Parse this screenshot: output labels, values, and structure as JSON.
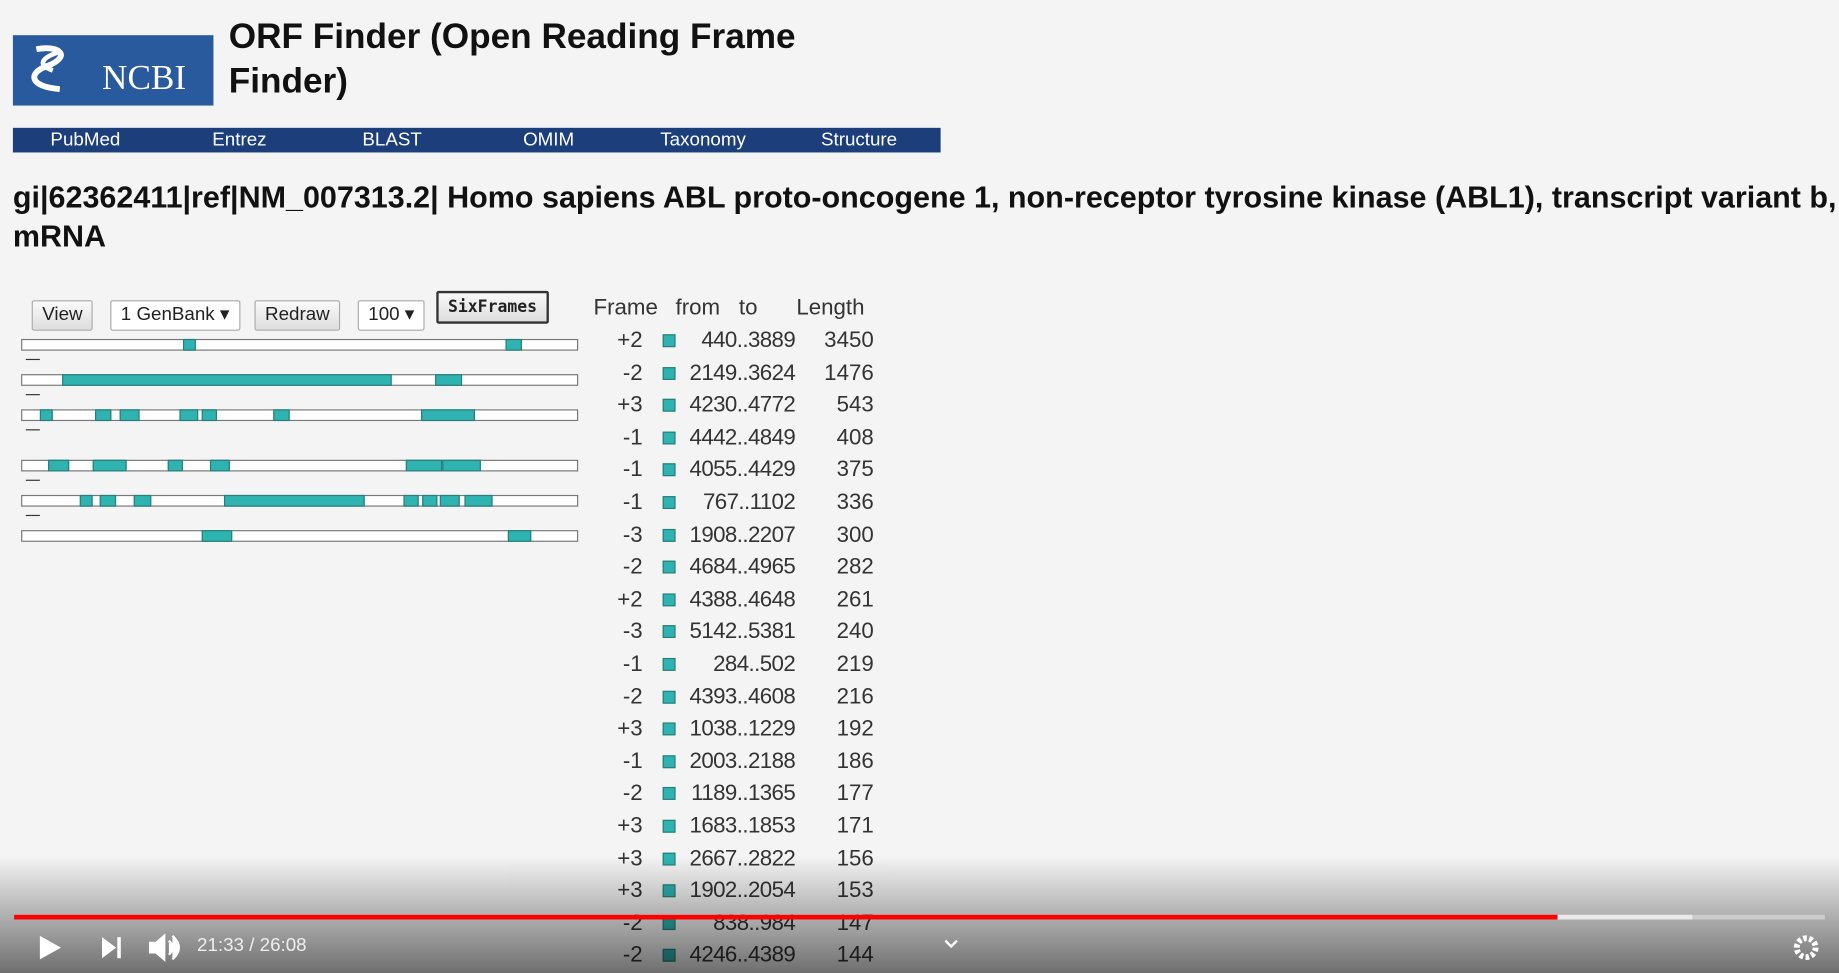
{
  "header": {
    "logo": "NCBI",
    "title": "ORF Finder (Open Reading Frame Finder)"
  },
  "nav": [
    "PubMed",
    "Entrez",
    "BLAST",
    "OMIM",
    "Taxonomy",
    "Structure"
  ],
  "sequence_title": "gi|62362411|ref|NM_007313.2| Homo sapiens ABL proto-oncogene 1, non-receptor tyrosine kinase (ABL1), transcript variant b, mRNA",
  "controls": {
    "view": "View",
    "format": "1 GenBank",
    "redraw": "Redraw",
    "count": "100",
    "six_frames": "SixFrames"
  },
  "table": {
    "headers": [
      "Frame",
      "from",
      "to",
      "Length"
    ],
    "rows": [
      [
        "+2",
        "440..3889",
        "3450"
      ],
      [
        "-2",
        "2149..3624",
        "1476"
      ],
      [
        "+3",
        "4230..4772",
        "543"
      ],
      [
        "-1",
        "4442..4849",
        "408"
      ],
      [
        "-1",
        "4055..4429",
        "375"
      ],
      [
        "-1",
        "767..1102",
        "336"
      ],
      [
        "-3",
        "1908..2207",
        "300"
      ],
      [
        "-2",
        "4684..4965",
        "282"
      ],
      [
        "+2",
        "4388..4648",
        "261"
      ],
      [
        "-3",
        "5142..5381",
        "240"
      ],
      [
        "-1",
        "284..502",
        "219"
      ],
      [
        "-2",
        "4393..4608",
        "216"
      ],
      [
        "+3",
        "1038..1229",
        "192"
      ],
      [
        "-1",
        "2003..2188",
        "186"
      ],
      [
        "-2",
        "1189..1365",
        "177"
      ],
      [
        "+3",
        "1683..1853",
        "171"
      ],
      [
        "+3",
        "2667..2822",
        "156"
      ],
      [
        "+3",
        "1902..2054",
        "153"
      ],
      [
        "-2",
        "838..984",
        "147"
      ],
      [
        "-2",
        "4246..4389",
        "144"
      ]
    ]
  },
  "player": {
    "time": "21:33 / 26:08"
  }
}
